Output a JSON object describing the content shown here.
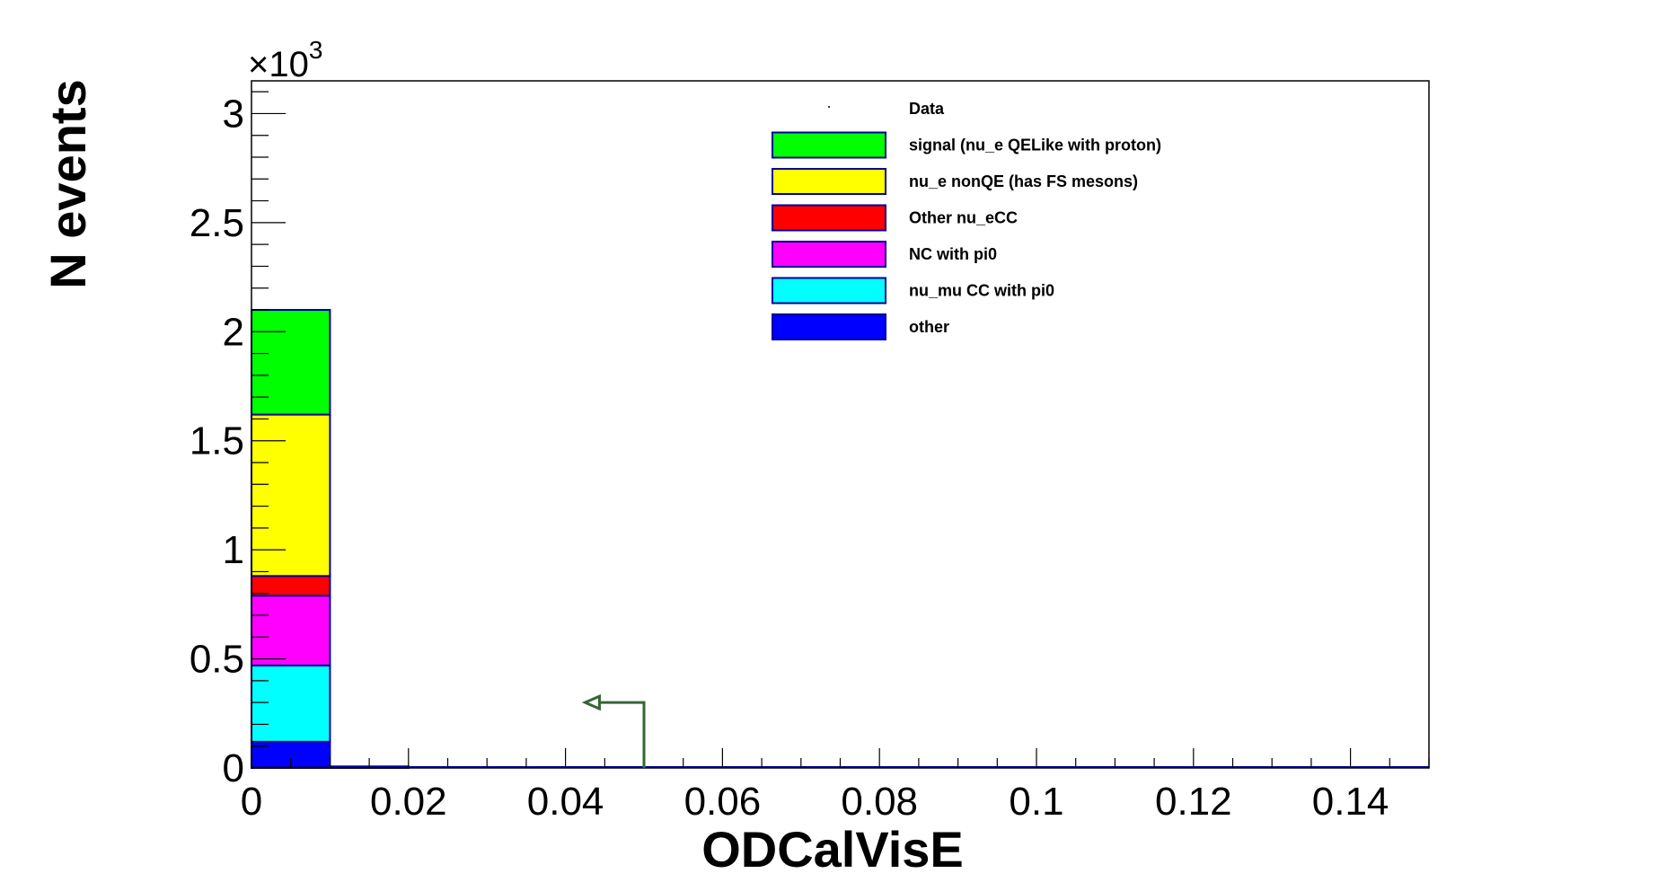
{
  "chart_data": {
    "type": "bar",
    "stacked": true,
    "xlabel": "ODCalVisE",
    "ylabel": "N events",
    "y_multiplier_label": "×10",
    "y_multiplier_exponent": "3",
    "xlim": [
      0,
      0.15
    ],
    "ylim": [
      0,
      3.15
    ],
    "x_ticks": [
      "0",
      "0.02",
      "0.04",
      "0.06",
      "0.08",
      "0.1",
      "0.12",
      "0.14"
    ],
    "y_ticks": [
      "0",
      "0.5",
      "1",
      "1.5",
      "2",
      "2.5",
      "3"
    ],
    "bins": [
      [
        0,
        0.01
      ],
      [
        0.01,
        0.02
      ]
    ],
    "series": [
      {
        "name": "other",
        "color": "#0000ff",
        "values": [
          0.12,
          0.0
        ]
      },
      {
        "name": "nu_mu CC with pi0",
        "color": "#00ffff",
        "values": [
          0.35,
          0.0
        ]
      },
      {
        "name": "NC with pi0",
        "color": "#ff00ff",
        "values": [
          0.32,
          0.0
        ]
      },
      {
        "name": "Other nu_eCC",
        "color": "#ff0000",
        "values": [
          0.09,
          0.0
        ]
      },
      {
        "name": "nu_e nonQE (has FS mesons)",
        "color": "#ffff00",
        "values": [
          0.74,
          0.0
        ]
      },
      {
        "name": "signal (nu_e QELike with proton)",
        "color": "#00ff00",
        "values": [
          0.48,
          0.007
        ]
      }
    ],
    "data_series": {
      "name": "Data",
      "values": []
    },
    "cut_arrow": {
      "x": 0.05,
      "y": 0.3,
      "direction": "left",
      "color": "#336633"
    },
    "legend": {
      "position": "top-right",
      "entries": [
        {
          "label": "Data",
          "color": "",
          "marker": true
        },
        {
          "label": "signal (nu_e QELike with proton)",
          "color": "#00ff00"
        },
        {
          "label": "nu_e nonQE (has FS mesons)",
          "color": "#ffff00"
        },
        {
          "label": "Other nu_eCC",
          "color": "#ff0000"
        },
        {
          "label": "NC with pi0",
          "color": "#ff00ff"
        },
        {
          "label": "nu_mu CC with pi0",
          "color": "#00ffff"
        },
        {
          "label": "other",
          "color": "#0000ff"
        }
      ]
    },
    "outline_color": "#000099"
  }
}
